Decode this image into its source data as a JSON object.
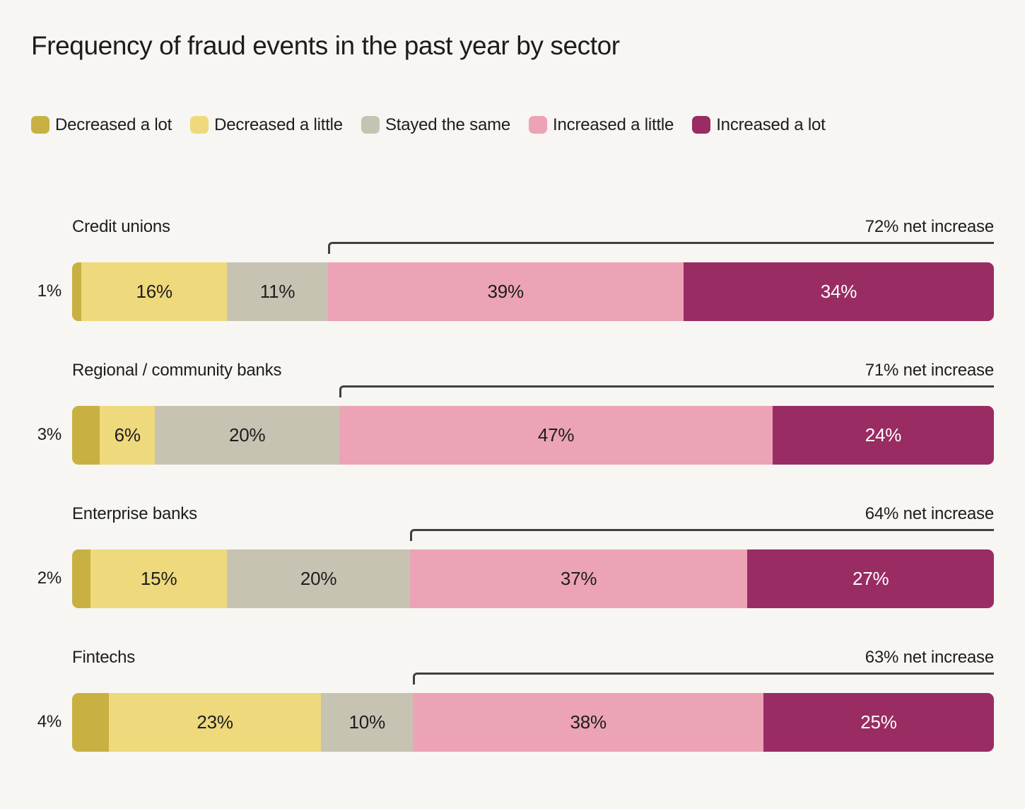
{
  "title": "Frequency of fraud events in the past year by sector",
  "legend": {
    "items": [
      {
        "label": "Decreased a lot",
        "color": "#c8b142"
      },
      {
        "label": "Decreased a little",
        "color": "#eed97c"
      },
      {
        "label": "Stayed the same",
        "color": "#c7c3b3"
      },
      {
        "label": "Increased a little",
        "color": "#eca3b5"
      },
      {
        "label": "Increased a lot",
        "color": "#992c62"
      }
    ]
  },
  "chart_data": {
    "type": "bar",
    "orientation": "horizontal",
    "stacked": true,
    "title": "Frequency of fraud events in the past year by sector",
    "xlabel": "",
    "ylabel": "",
    "value_format": "percent",
    "grid": false,
    "legend_position": "top",
    "annotation_style": "bracket spanning increase segments with net-increase label",
    "series_names": [
      "Decreased a lot",
      "Decreased a little",
      "Stayed the same",
      "Increased a little",
      "Increased a lot"
    ],
    "series_colors": [
      "#c8b142",
      "#eed97c",
      "#c7c3b3",
      "#eca3b5",
      "#992c62"
    ],
    "categories": [
      "Credit unions",
      "Regional / community banks",
      "Enterprise banks",
      "Fintechs"
    ],
    "rows": [
      {
        "category": "Credit unions",
        "values": [
          1,
          16,
          11,
          39,
          34
        ],
        "outside_label": "1%",
        "segment_labels": [
          "",
          "16%",
          "11%",
          "39%",
          "34%"
        ],
        "net_increase": 72,
        "net_increase_label": "72% net increase"
      },
      {
        "category": "Regional / community banks",
        "values": [
          3,
          6,
          20,
          47,
          24
        ],
        "outside_label": "3%",
        "segment_labels": [
          "",
          "6%",
          "20%",
          "47%",
          "24%"
        ],
        "net_increase": 71,
        "net_increase_label": "71% net increase"
      },
      {
        "category": "Enterprise banks",
        "values": [
          2,
          15,
          20,
          37,
          27
        ],
        "outside_label": "2%",
        "segment_labels": [
          "",
          "15%",
          "20%",
          "37%",
          "27%"
        ],
        "net_increase": 64,
        "net_increase_label": "64% net increase"
      },
      {
        "category": "Fintechs",
        "values": [
          4,
          23,
          10,
          38,
          25
        ],
        "outside_label": "4%",
        "segment_labels": [
          "",
          "23%",
          "10%",
          "38%",
          "25%"
        ],
        "net_increase": 63,
        "net_increase_label": "63% net increase"
      }
    ]
  },
  "colors": {
    "background": "#f7f6f3",
    "text": "#1d1d1d",
    "bracket_line": "#404040",
    "label_on_dark": "#ffffff"
  }
}
